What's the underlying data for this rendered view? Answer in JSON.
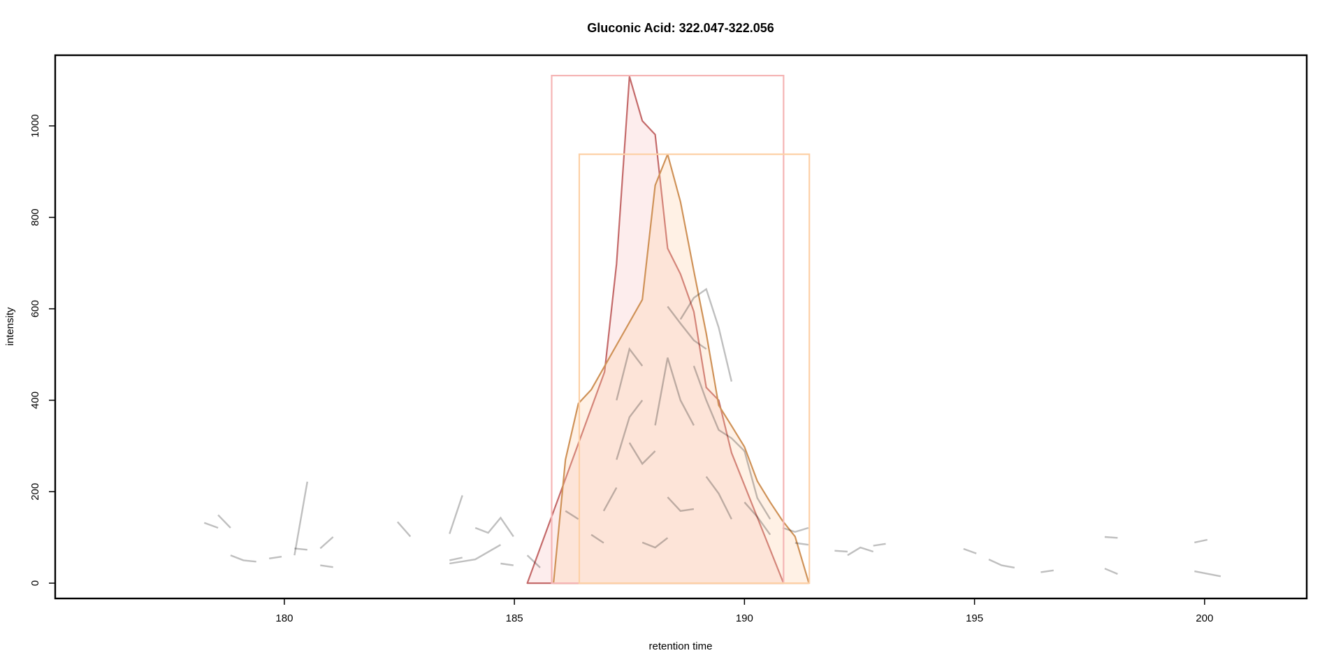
{
  "chart_data": {
    "type": "chromatogram",
    "title": "Gluconic Acid: 322.047-322.056",
    "x_label": "retention time",
    "y_label": "intensity",
    "xlim": [
      175.02,
      202.22
    ],
    "ylim": [
      -33.5,
      1154.5
    ],
    "xticks": [
      180,
      185,
      190,
      195,
      200
    ],
    "yticks": [
      0,
      200,
      400,
      600,
      800,
      1000
    ],
    "peaks": [
      {
        "color": "#c46a6a",
        "fill": "rgba(248,190,190,0.28)",
        "box_color": "#f5b5b5",
        "box_x": [
          185.81,
          190.85
        ],
        "box_top": 1110,
        "x": [
          185.28,
          186.96,
          187.22,
          187.5,
          187.78,
          188.06,
          188.33,
          188.61,
          188.9,
          189.17,
          189.44,
          189.72,
          190.85
        ],
        "values": [
          0,
          462,
          698,
          1108,
          1011,
          981,
          732,
          676,
          594,
          428,
          400,
          285,
          0
        ]
      },
      {
        "color": "#cf9258",
        "fill": "rgba(255,205,160,0.28)",
        "box_color": "#fdd0a6",
        "box_x": [
          186.41,
          191.41
        ],
        "box_top": 938,
        "x": [
          185.85,
          186.11,
          186.39,
          186.67,
          187.78,
          188.06,
          188.33,
          188.61,
          188.9,
          189.17,
          189.44,
          189.72,
          190,
          190.28,
          190.56,
          190.83,
          191.1,
          191.4
        ],
        "values": [
          0,
          270,
          393,
          423,
          620,
          870,
          938,
          834,
          683,
          546,
          389,
          344,
          298,
          223,
          177,
          136,
          102,
          0
        ]
      }
    ],
    "trace_color": "rgba(0,0,0,0.25)",
    "traces": [
      {
        "x": [
          178.26,
          178.56
        ],
        "values": [
          132,
          121
        ]
      },
      {
        "x": [
          178.56,
          178.83
        ],
        "values": [
          149,
          121
        ]
      },
      {
        "x": [
          178.83,
          179.11,
          179.39
        ],
        "values": [
          61,
          50,
          47
        ]
      },
      {
        "x": [
          179.67,
          179.94
        ],
        "values": [
          54,
          58
        ]
      },
      {
        "x": [
          180.22,
          180.5
        ],
        "values": [
          61,
          222
        ]
      },
      {
        "x": [
          180.22,
          180.5
        ],
        "values": [
          76,
          73
        ]
      },
      {
        "x": [
          180.78,
          181.06
        ],
        "values": [
          76,
          101
        ]
      },
      {
        "x": [
          180.78,
          181.06
        ],
        "values": [
          39,
          35
        ]
      },
      {
        "x": [
          182.46,
          182.74
        ],
        "values": [
          134,
          102
        ]
      },
      {
        "x": [
          183.59,
          183.87
        ],
        "values": [
          108,
          192
        ]
      },
      {
        "x": [
          183.59,
          183.87
        ],
        "values": [
          50,
          56
        ]
      },
      {
        "x": [
          183.59,
          184.15,
          184.7
        ],
        "values": [
          43,
          52,
          84
        ]
      },
      {
        "x": [
          184.15,
          184.43,
          184.7,
          184.98
        ],
        "values": [
          121,
          110,
          143,
          102
        ]
      },
      {
        "x": [
          184.7,
          184.98
        ],
        "values": [
          43,
          39
        ]
      },
      {
        "x": [
          185.28,
          185.56
        ],
        "values": [
          61,
          34
        ]
      },
      {
        "x": [
          186.11,
          186.39
        ],
        "values": [
          158,
          140
        ]
      },
      {
        "x": [
          186.67,
          186.94
        ],
        "values": [
          106,
          88
        ]
      },
      {
        "x": [
          186.94,
          187.22
        ],
        "values": [
          158,
          209
        ]
      },
      {
        "x": [
          187.22,
          187.5,
          187.78
        ],
        "values": [
          400,
          512,
          475
        ]
      },
      {
        "x": [
          187.78,
          188.06,
          188.33
        ],
        "values": [
          89,
          78,
          99
        ]
      },
      {
        "x": [
          188.33,
          188.61,
          188.9
        ],
        "values": [
          188,
          158,
          162
        ]
      },
      {
        "x": [
          188.61,
          188.9,
          189.17,
          189.44,
          189.72
        ],
        "values": [
          577,
          624,
          643,
          559,
          441
        ]
      },
      {
        "x": [
          188.06,
          188.33,
          188.61,
          188.9
        ],
        "values": [
          345,
          493,
          400,
          345
        ]
      },
      {
        "x": [
          187.5,
          187.78,
          188.06
        ],
        "values": [
          307,
          261,
          289
        ]
      },
      {
        "x": [
          187.22,
          187.5,
          187.78
        ],
        "values": [
          270,
          363,
          400
        ]
      },
      {
        "x": [
          188.33,
          188.61,
          188.9,
          189.17
        ],
        "values": [
          605,
          568,
          531,
          512
        ]
      },
      {
        "x": [
          188.9,
          189.17,
          189.44,
          189.72,
          190
        ],
        "values": [
          475,
          400,
          335,
          317,
          289
        ]
      },
      {
        "x": [
          189.17,
          189.44,
          189.72
        ],
        "values": [
          233,
          196,
          140
        ]
      },
      {
        "x": [
          190,
          190.28,
          190.56
        ],
        "values": [
          177,
          145,
          106
        ]
      },
      {
        "x": [
          190,
          190.28,
          190.56
        ],
        "values": [
          289,
          186,
          140
        ]
      },
      {
        "x": [
          190.83,
          191.1,
          191.39
        ],
        "values": [
          121,
          112,
          121
        ]
      },
      {
        "x": [
          191.1,
          191.39
        ],
        "values": [
          88,
          84
        ]
      },
      {
        "x": [
          191.96,
          192.24
        ],
        "values": [
          71,
          69
        ]
      },
      {
        "x": [
          192.24,
          192.52,
          192.8
        ],
        "values": [
          61,
          78,
          69
        ]
      },
      {
        "x": [
          192.8,
          193.07
        ],
        "values": [
          82,
          86
        ]
      },
      {
        "x": [
          194.76,
          195.04
        ],
        "values": [
          75,
          65
        ]
      },
      {
        "x": [
          195.31,
          195.59,
          195.87
        ],
        "values": [
          52,
          39,
          34
        ]
      },
      {
        "x": [
          196.44,
          196.72
        ],
        "values": [
          24,
          28
        ]
      },
      {
        "x": [
          197.83,
          198.11
        ],
        "values": [
          101,
          99
        ]
      },
      {
        "x": [
          197.83,
          198.11
        ],
        "values": [
          32,
          20
        ]
      },
      {
        "x": [
          199.78,
          200.06
        ],
        "values": [
          89,
          95
        ]
      },
      {
        "x": [
          199.78,
          200.35
        ],
        "values": [
          26,
          15
        ]
      }
    ]
  }
}
